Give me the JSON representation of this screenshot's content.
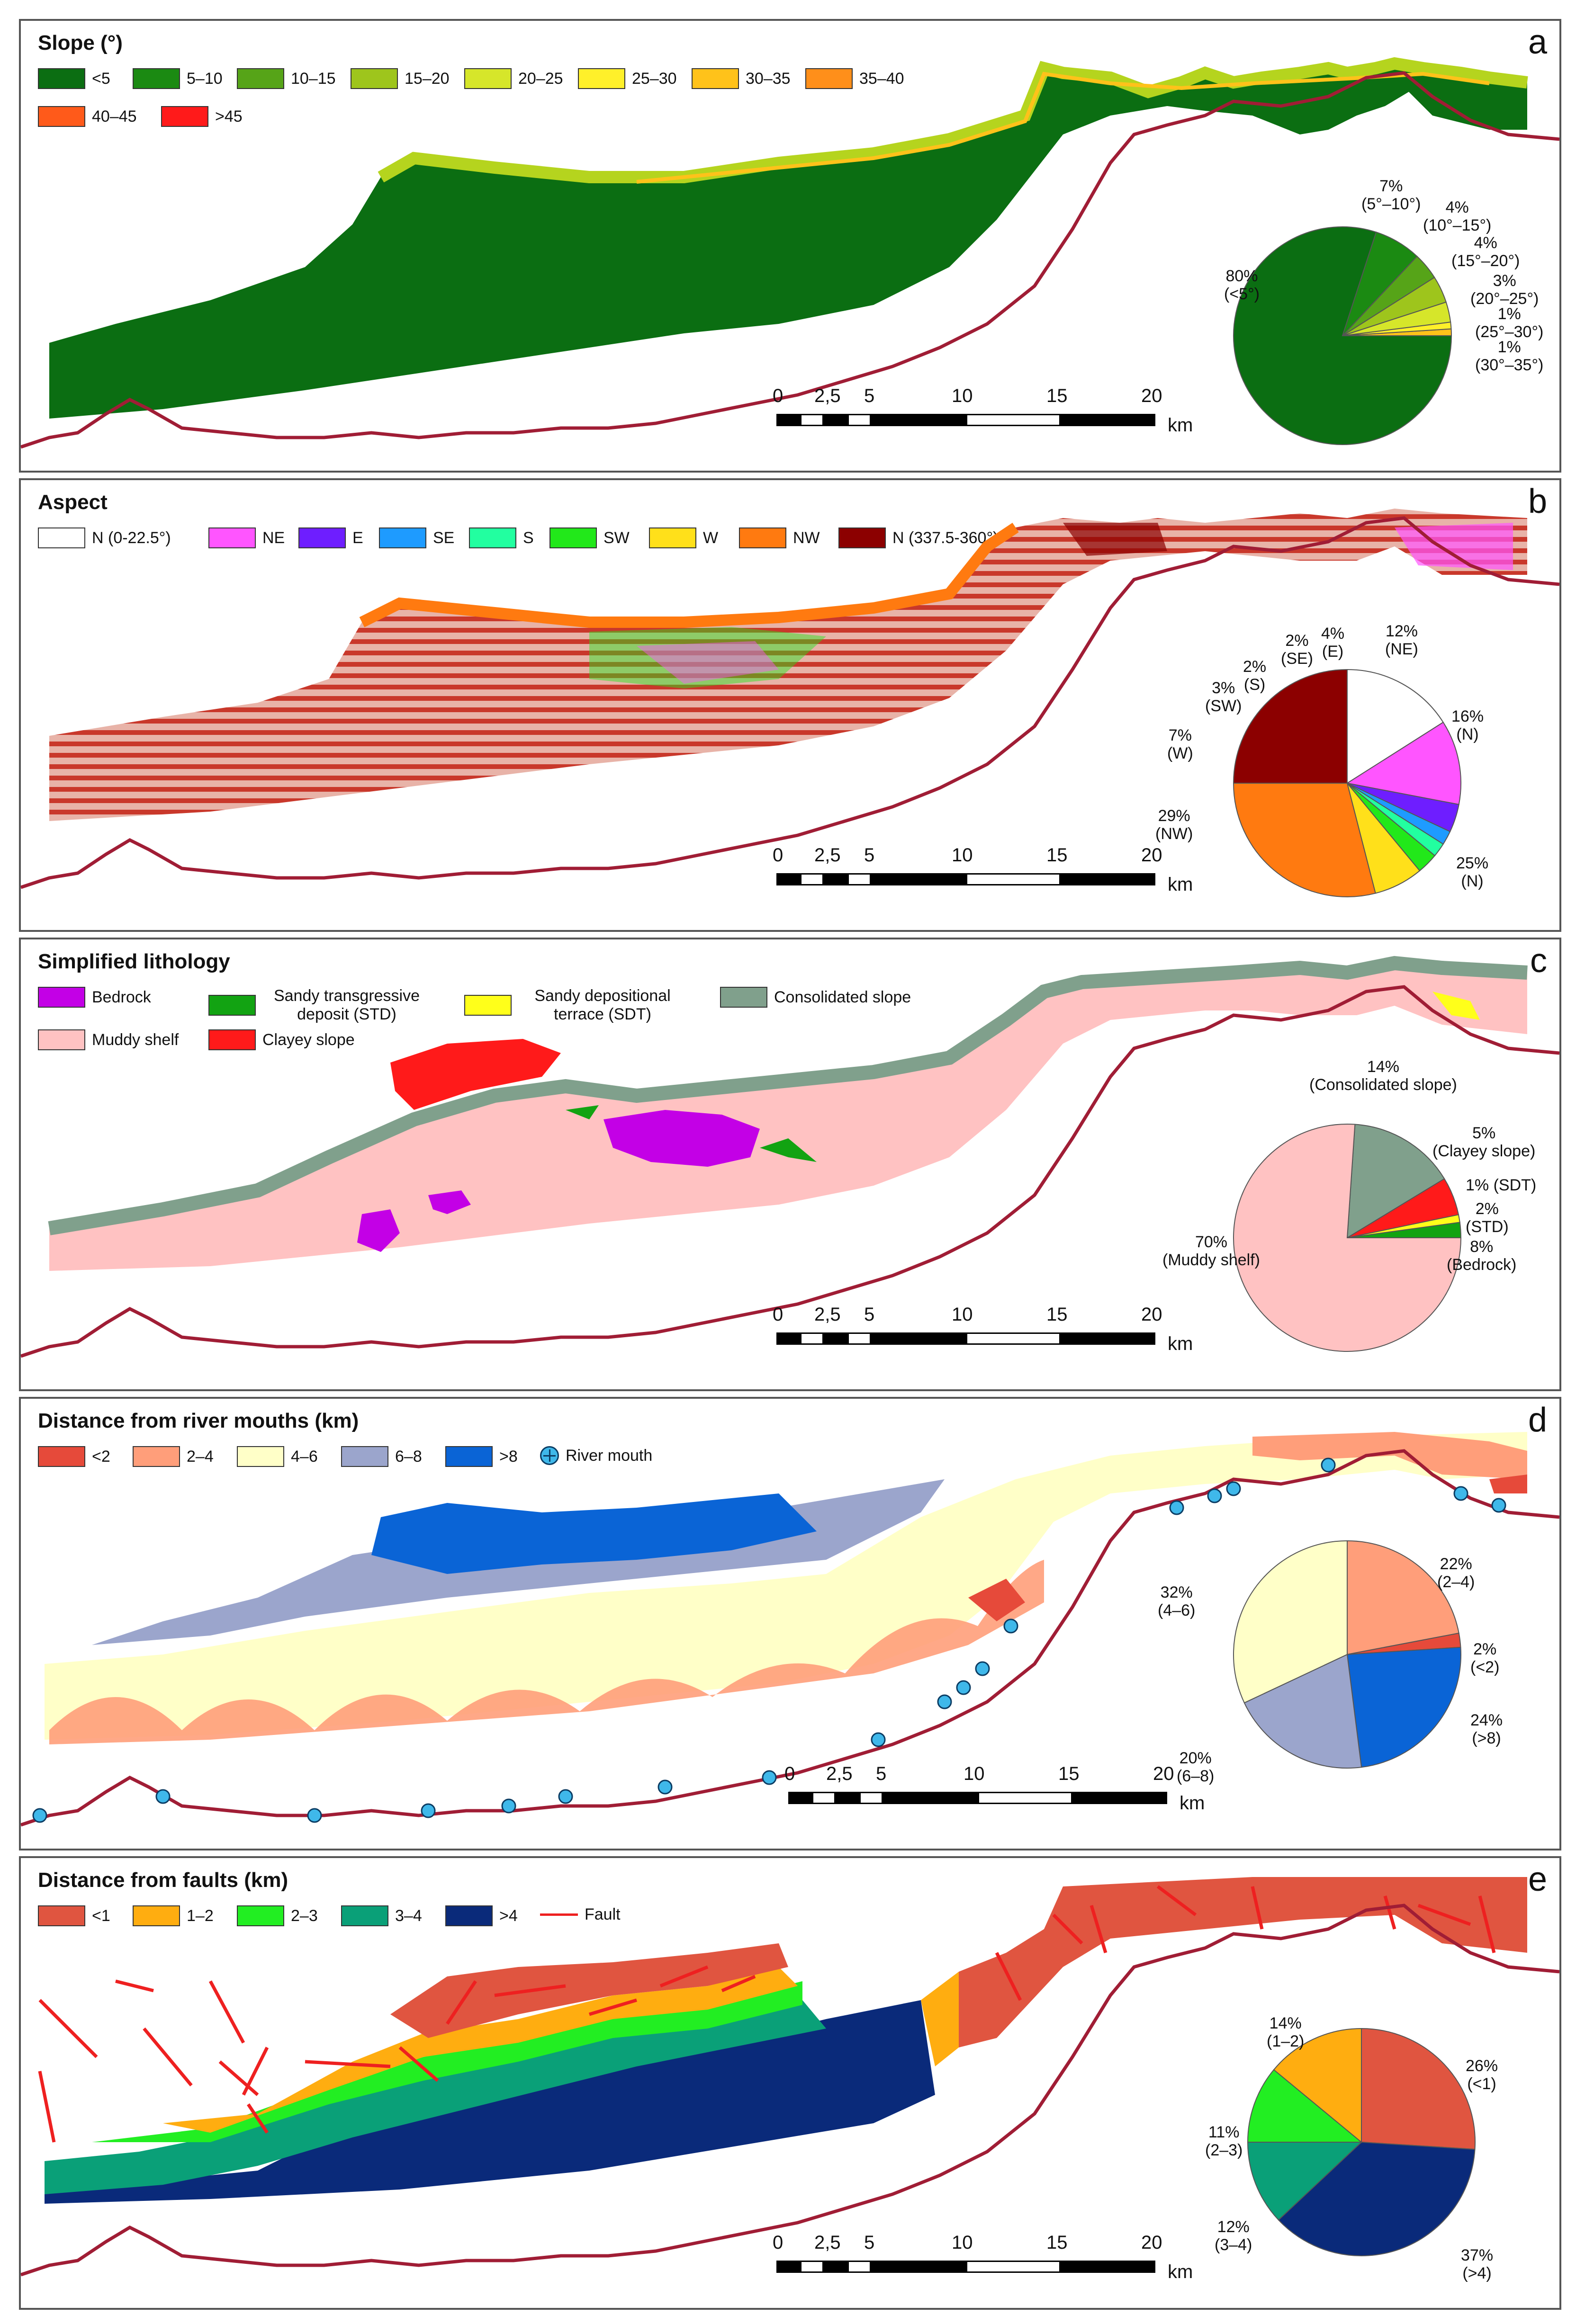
{
  "colors": {
    "coast": "#a01d35",
    "slope": [
      "#0b6e12",
      "#1b8a12",
      "#56a418",
      "#9ec51c",
      "#d6e62a",
      "#fff02a",
      "#ffc21a",
      "#ff8f1a",
      "#ff5a1a",
      "#ff1a1a"
    ],
    "aspect": [
      "#ffffff",
      "#ff55ff",
      "#6e1eff",
      "#1e9bff",
      "#22ffa0",
      "#22e81a",
      "#ffe01a",
      "#ff7a10",
      "#8c0000"
    ],
    "lith": [
      "#c300e6",
      "#12a312",
      "#ffff1a",
      "#80a08c",
      "#ffc2c2",
      "#ff1a1a"
    ],
    "river": [
      "#e64a3a",
      "#ff9e7a",
      "#ffffc8",
      "#9ba5cc",
      "#0a64d6"
    ],
    "fault": [
      "#e05540",
      "#ffad10",
      "#22ee22",
      "#0aa078",
      "#0a2a7a"
    ],
    "fault_line": "#ee2020"
  },
  "scale": {
    "ticks": [
      "0",
      "2,5",
      "5",
      "10",
      "15",
      "20"
    ],
    "unit": "km"
  },
  "panels": {
    "a": {
      "title": "Slope (°)",
      "letter": "a",
      "legend": [
        "<5",
        "5–10",
        "10–15",
        "15–20",
        "20–25",
        "25–30",
        "30–35",
        "35–40",
        "40–45",
        ">45"
      ],
      "pie": {
        "values": [
          80,
          7,
          4,
          4,
          3,
          1,
          1
        ],
        "labels": [
          {
            "pct": "80%",
            "cls": "(<5°)"
          },
          {
            "pct": "7%",
            "cls": "(5°–10°)"
          },
          {
            "pct": "4%",
            "cls": "(10°–15°)"
          },
          {
            "pct": "4%",
            "cls": "(15°–20°)"
          },
          {
            "pct": "3%",
            "cls": "(20°–25°)"
          },
          {
            "pct": "1%",
            "cls": "(25°–30°)"
          },
          {
            "pct": "1%",
            "cls": "(30°–35°)"
          }
        ]
      }
    },
    "b": {
      "title": "Aspect",
      "letter": "b",
      "legend": [
        "N (0-22.5°)",
        "NE",
        "E",
        "SE",
        "S",
        "SW",
        "W",
        "NW",
        "N (337.5-360°)"
      ],
      "pie": {
        "values": [
          16,
          12,
          4,
          2,
          2,
          3,
          7,
          29,
          25
        ],
        "labels": [
          {
            "pct": "16%",
            "cls": "(N)"
          },
          {
            "pct": "12%",
            "cls": "(NE)"
          },
          {
            "pct": "4%",
            "cls": "(E)"
          },
          {
            "pct": "2%",
            "cls": "(SE)"
          },
          {
            "pct": "2%",
            "cls": "(S)"
          },
          {
            "pct": "3%",
            "cls": "(SW)"
          },
          {
            "pct": "7%",
            "cls": "(W)"
          },
          {
            "pct": "29%",
            "cls": "(NW)"
          },
          {
            "pct": "25%",
            "cls": "(N)"
          }
        ]
      }
    },
    "c": {
      "title": "Simplified lithology",
      "letter": "c",
      "legend": [
        "Bedrock",
        "Sandy transgressive deposit (STD)",
        "Sandy depositional terrace (SDT)",
        "Consolidated slope",
        "Muddy shelf",
        "Clayey slope"
      ],
      "pie": {
        "values": [
          8,
          2,
          1,
          5,
          14,
          70
        ],
        "labels": [
          {
            "pct": "8%",
            "cls": "(Bedrock)"
          },
          {
            "pct": "2%",
            "cls": "(STD)"
          },
          {
            "pct": "1% (SDT)",
            "cls": ""
          },
          {
            "pct": "5%",
            "cls": "(Clayey slope)"
          },
          {
            "pct": "14%",
            "cls": "(Consolidated slope)"
          },
          {
            "pct": "70%",
            "cls": "(Muddy shelf)"
          }
        ]
      }
    },
    "d": {
      "title": "Distance from river mouths (km)",
      "letter": "d",
      "legend": [
        "<2",
        "2–4",
        "4–6",
        "6–8",
        ">8"
      ],
      "river_label": "River mouth",
      "pie": {
        "values": [
          22,
          2,
          24,
          20,
          32
        ],
        "labels": [
          {
            "pct": "22%",
            "cls": "(2–4)"
          },
          {
            "pct": "2%",
            "cls": "(<2)"
          },
          {
            "pct": "24%",
            "cls": "(>8)"
          },
          {
            "pct": "20%",
            "cls": "(6–8)"
          },
          {
            "pct": "32%",
            "cls": "(4–6)"
          }
        ]
      }
    },
    "e": {
      "title": "Distance from faults (km)",
      "letter": "e",
      "legend": [
        "<1",
        "1–2",
        "2–3",
        "3–4",
        ">4"
      ],
      "fault_label": "Fault",
      "pie": {
        "values": [
          26,
          37,
          12,
          11,
          14
        ],
        "labels": [
          {
            "pct": "26%",
            "cls": "(<1)"
          },
          {
            "pct": "37%",
            "cls": "(>4)"
          },
          {
            "pct": "12%",
            "cls": "(3–4)"
          },
          {
            "pct": "11%",
            "cls": "(2–3)"
          },
          {
            "pct": "14%",
            "cls": "(1–2)"
          }
        ]
      }
    }
  }
}
